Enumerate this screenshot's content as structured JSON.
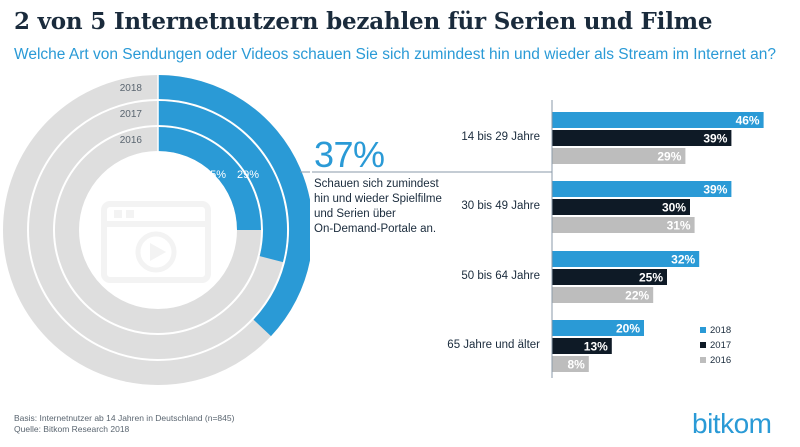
{
  "header": {
    "title": "2 von 5 Internetnutzern bezahlen für Serien und Filme",
    "subtitle": "Welche Art von Sendungen oder Videos schauen Sie sich zumindest hin und wieder als Stream im Internet an?"
  },
  "highlight": {
    "value": "37%",
    "description": "Schauen sich zumindest\nhin und wieder Spielfilme\nund Serien über\nOn-Demand-Portale an."
  },
  "footer": {
    "line1": "Basis: Internetnutzer ab 14 Jahren in Deutschland (n=845)",
    "line2": "Quelle: Bitkom Research 2018"
  },
  "brand": {
    "logo_text": "bitkom"
  },
  "colors": {
    "y2018": "#2a9ad6",
    "y2017": "#0e1a26",
    "y2016": "#bdbdbd",
    "ring_bg": "#dedede",
    "icon": "#f3f3f3"
  },
  "icon": {
    "name": "video-player-icon"
  },
  "chart_data": [
    {
      "type": "donut",
      "rings": [
        {
          "year": "2018",
          "value": 37
        },
        {
          "year": "2017",
          "value": 29
        },
        {
          "year": "2016",
          "value": 25
        }
      ],
      "labels_shown": [
        "25%",
        "29%"
      ]
    },
    {
      "type": "bar",
      "orientation": "horizontal",
      "categories": [
        "14 bis 29 Jahre",
        "30  bis 49 Jahre",
        "50 bis 64 Jahre",
        "65 Jahre und älter"
      ],
      "series": [
        {
          "name": "2018",
          "values": [
            46,
            39,
            32,
            20
          ]
        },
        {
          "name": "2017",
          "values": [
            39,
            30,
            25,
            13
          ]
        },
        {
          "name": "2016",
          "values": [
            29,
            31,
            22,
            8
          ]
        }
      ],
      "unit": "%",
      "legend_position": "bottom-right"
    }
  ]
}
